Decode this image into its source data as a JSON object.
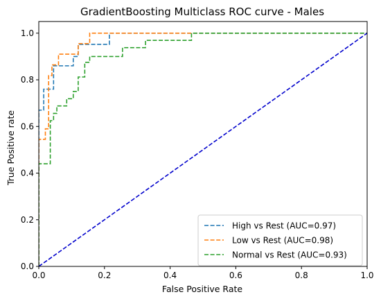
{
  "chart_data": {
    "type": "line",
    "title": "GradientBoosting Multiclass ROC curve - Males",
    "xlabel": "False Positive Rate",
    "ylabel": "True Positive rate",
    "xlim": [
      0,
      1
    ],
    "ylim": [
      0,
      1.05
    ],
    "xticks": [
      "0.0",
      "0.2",
      "0.4",
      "0.6",
      "0.8",
      "1.0"
    ],
    "yticks": [
      "0.0",
      "0.2",
      "0.4",
      "0.6",
      "0.8",
      "1.0"
    ],
    "grid": false,
    "legend_position": "lower-right",
    "series": [
      {
        "name": "High vs Rest (AUC=0.97)",
        "color": "#1f77b4",
        "style": "dashed",
        "points": [
          [
            0.0,
            0.0
          ],
          [
            0.0,
            0.67
          ],
          [
            0.015,
            0.67
          ],
          [
            0.015,
            0.76
          ],
          [
            0.045,
            0.76
          ],
          [
            0.045,
            0.86
          ],
          [
            0.105,
            0.86
          ],
          [
            0.105,
            0.9
          ],
          [
            0.12,
            0.9
          ],
          [
            0.12,
            0.952
          ],
          [
            0.215,
            0.952
          ],
          [
            0.215,
            1.0
          ],
          [
            1.0,
            1.0
          ]
        ]
      },
      {
        "name": "Low vs Rest (AUC=0.98)",
        "color": "#ff7f0e",
        "style": "dashed",
        "points": [
          [
            0.0,
            0.0
          ],
          [
            0.0,
            0.545
          ],
          [
            0.02,
            0.545
          ],
          [
            0.02,
            0.59
          ],
          [
            0.03,
            0.59
          ],
          [
            0.03,
            0.818
          ],
          [
            0.04,
            0.818
          ],
          [
            0.04,
            0.864
          ],
          [
            0.06,
            0.864
          ],
          [
            0.06,
            0.91
          ],
          [
            0.12,
            0.91
          ],
          [
            0.12,
            0.955
          ],
          [
            0.155,
            0.955
          ],
          [
            0.155,
            1.0
          ],
          [
            1.0,
            1.0
          ]
        ]
      },
      {
        "name": "Normal vs Rest (AUC=0.93)",
        "color": "#2ca02c",
        "style": "dashed",
        "points": [
          [
            0.0,
            0.0
          ],
          [
            0.0,
            0.44
          ],
          [
            0.035,
            0.44
          ],
          [
            0.035,
            0.625
          ],
          [
            0.045,
            0.625
          ],
          [
            0.045,
            0.656
          ],
          [
            0.055,
            0.656
          ],
          [
            0.055,
            0.688
          ],
          [
            0.085,
            0.688
          ],
          [
            0.085,
            0.719
          ],
          [
            0.105,
            0.719
          ],
          [
            0.105,
            0.75
          ],
          [
            0.12,
            0.75
          ],
          [
            0.12,
            0.812
          ],
          [
            0.14,
            0.812
          ],
          [
            0.14,
            0.875
          ],
          [
            0.155,
            0.875
          ],
          [
            0.155,
            0.9
          ],
          [
            0.255,
            0.9
          ],
          [
            0.255,
            0.938
          ],
          [
            0.325,
            0.938
          ],
          [
            0.325,
            0.969
          ],
          [
            0.465,
            0.969
          ],
          [
            0.465,
            1.0
          ],
          [
            1.0,
            1.0
          ]
        ]
      },
      {
        "name": "",
        "color": "#0000cc",
        "style": "dashed",
        "points": [
          [
            0,
            0
          ],
          [
            1,
            1
          ]
        ]
      }
    ]
  }
}
